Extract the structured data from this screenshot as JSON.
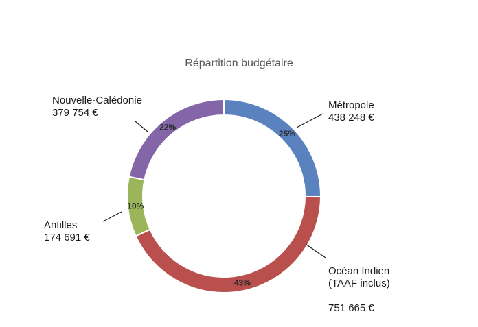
{
  "chart_data": {
    "type": "pie",
    "variant": "donut",
    "title": "Répartition budgétaire",
    "slices": [
      {
        "name": "Métropole",
        "value_text": "438 248 €",
        "value": 438248,
        "percent_label": "25%",
        "color": "#5a82be"
      },
      {
        "name": "Océan Indien\n(TAAF inclus)",
        "value_text": "751 665 €",
        "value": 751665,
        "percent_label": "43%",
        "color": "#b9504e"
      },
      {
        "name": "Antilles",
        "value_text": "174 691 €",
        "value": 174691,
        "percent_label": "10%",
        "color": "#9bb55b"
      },
      {
        "name": "Nouvelle-Calédonie",
        "value_text": "379 754 €",
        "value": 379754,
        "percent_label": "22%",
        "color": "#8465a8"
      }
    ]
  }
}
